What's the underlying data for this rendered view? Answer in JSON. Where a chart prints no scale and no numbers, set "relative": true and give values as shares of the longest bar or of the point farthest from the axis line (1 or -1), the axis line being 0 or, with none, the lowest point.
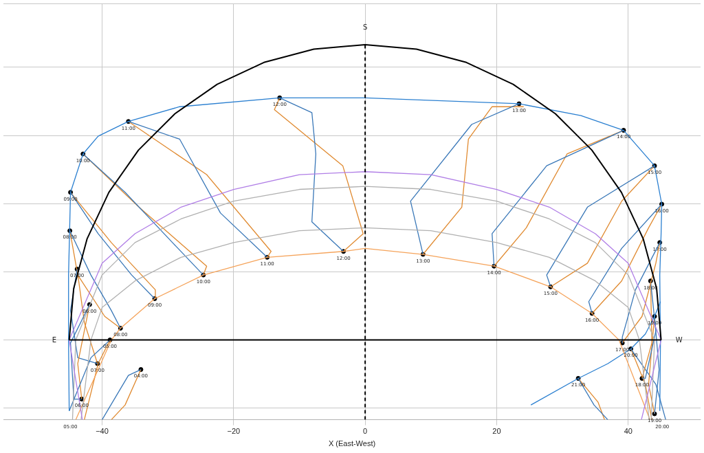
{
  "chart_data": {
    "type": "line",
    "relative": true,
    "xlabel": "X (East-West)",
    "xlim": [
      -55,
      51
    ],
    "xticks": [
      -40,
      -20,
      0,
      20,
      40
    ],
    "grid": true,
    "legend": false,
    "tick_labels": "x",
    "marker": "none",
    "series": [
      {
        "color": "#000000",
        "x": [
          -45,
          -44.32,
          -42.29,
          -38.97,
          -34.47,
          -28.93,
          -22.5,
          -15.39,
          -7.81,
          0,
          7.81,
          15.39,
          22.5,
          28.93,
          34.47,
          38.97,
          42.29,
          44.32,
          45
        ],
        "values": [
          0,
          0.174,
          0.342,
          0.5,
          0.643,
          0.766,
          0.866,
          0.94,
          0.985,
          1,
          0.985,
          0.94,
          0.866,
          0.766,
          0.643,
          0.5,
          0.342,
          0.174,
          0
        ]
      },
      {
        "color": "#000000",
        "x": [
          -45,
          45
        ],
        "values": [
          0,
          0
        ]
      },
      {
        "color": "#000000",
        "line_style": "dashed",
        "x": [
          0,
          0
        ],
        "values": [
          -0.27,
          1
        ]
      },
      {
        "color": "#b07ee6",
        "x": [
          -43,
          -45,
          -40,
          -35,
          -28,
          -20,
          -10,
          0,
          10,
          20,
          28,
          35,
          40,
          45,
          42
        ],
        "values": [
          -0.27,
          0,
          0.26,
          0.36,
          0.45,
          0.51,
          0.56,
          0.57,
          0.56,
          0.51,
          0.45,
          0.36,
          0.26,
          0,
          -0.27
        ]
      },
      {
        "color": "#b0b0b0",
        "x": [
          -44.5,
          -44,
          -40,
          -35,
          -28,
          -20,
          -10,
          0,
          10,
          20,
          28,
          35,
          40,
          44,
          43.5
        ],
        "values": [
          -0.27,
          0,
          0.22,
          0.33,
          0.41,
          0.47,
          0.51,
          0.52,
          0.51,
          0.47,
          0.41,
          0.33,
          0.22,
          0,
          -0.27
        ]
      },
      {
        "color": "#b0b0b0",
        "x": [
          -43.2,
          -41.7,
          -40,
          -35,
          -28,
          -20,
          -10,
          0,
          10,
          20,
          28,
          35,
          40,
          41.7,
          43.2
        ],
        "values": [
          -0.27,
          0,
          0.11,
          0.2,
          0.28,
          0.33,
          0.37,
          0.38,
          0.37,
          0.33,
          0.28,
          0.2,
          0.11,
          0,
          -0.27
        ]
      },
      {
        "color": "#f5a35a",
        "x": [
          -44,
          -38.6,
          -37.2,
          -32,
          -24.6,
          -14.9,
          -3.3,
          0,
          8.8,
          19.6,
          28.2,
          34.5,
          38.6,
          43.3
        ],
        "values": [
          -0.27,
          0,
          0.04,
          0.14,
          0.22,
          0.28,
          0.3,
          0.31,
          0.29,
          0.25,
          0.18,
          0.09,
          0,
          -0.27
        ]
      },
      {
        "color": "#2a7fd0",
        "x": [
          -45.0,
          -45.1,
          -45.1,
          -44.8,
          -42.9,
          -40.6,
          -36.0,
          -28.2,
          -13.0,
          0,
          23.4,
          32.8,
          39.3,
          44.0,
          45.1,
          45.0,
          44.8,
          44.9,
          44.8
        ],
        "values": [
          -0.24,
          -0.01,
          0.22,
          0.5,
          0.63,
          0.69,
          0.74,
          0.79,
          0.82,
          0.82,
          0.8,
          0.76,
          0.71,
          0.59,
          0.46,
          0.36,
          0.22,
          -0.01,
          -0.24
        ]
      },
      {
        "color": "#2a7fd0",
        "x": [
          25.2,
          32.4,
          36.9,
          40.4,
          42.6,
          44.0,
          44.9
        ],
        "values": [
          -0.22,
          -0.13,
          -0.08,
          -0.03,
          0.02,
          0.08,
          0.13
        ]
      },
      {
        "color": "#3a78b8",
        "x": [
          -34.1,
          -36.0,
          -40.0
        ],
        "values": [
          -0.1,
          -0.12,
          -0.27
        ]
      },
      {
        "color": "#e08a30",
        "x": [
          -34.1,
          -36.5,
          -38.6
        ],
        "values": [
          -0.1,
          -0.22,
          -0.27
        ]
      },
      {
        "color": "#3a78b8",
        "x": [
          -38.8,
          -41.7,
          -45.0
        ],
        "values": [
          0,
          -0.06,
          -0.24
        ]
      },
      {
        "color": "#e08a30",
        "x": [
          -38.8,
          -40.6,
          -42.7
        ],
        "values": [
          0,
          -0.08,
          -0.27
        ]
      },
      {
        "color": "#3a78b8",
        "x": [
          -41.9,
          -44.8,
          -44.3,
          -43.1
        ],
        "values": [
          0.12,
          -0.01,
          -0.2,
          -0.2
        ]
      },
      {
        "color": "#e08a30",
        "x": [
          -43.1,
          -43.7,
          -41.9
        ],
        "values": [
          -0.2,
          -0.08,
          0.12
        ]
      },
      {
        "color": "#3a78b8",
        "x": [
          -43.8,
          -44.8,
          -43.7,
          -40.7
        ],
        "values": [
          0.24,
          0.1,
          -0.06,
          -0.08
        ]
      },
      {
        "color": "#e08a30",
        "x": [
          -40.7,
          -42.7,
          -43.8
        ],
        "values": [
          -0.08,
          0.06,
          0.24
        ]
      },
      {
        "color": "#3a78b8",
        "x": [
          -44.9,
          -41.7,
          -38.6,
          -37.2
        ],
        "values": [
          0.37,
          0.22,
          0.1,
          0.04
        ]
      },
      {
        "color": "#e08a30",
        "x": [
          -37.2,
          -39.6,
          -43.7,
          -44.9
        ],
        "values": [
          0.04,
          0.08,
          0.22,
          0.37
        ]
      },
      {
        "color": "#3a78b8",
        "x": [
          -44.8,
          -40.6,
          -35.5,
          -32.0
        ],
        "values": [
          0.5,
          0.36,
          0.22,
          0.14
        ]
      },
      {
        "color": "#e08a30",
        "x": [
          -32.0,
          -31.9,
          -38.6,
          -44.8
        ],
        "values": [
          0.14,
          0.17,
          0.33,
          0.5
        ]
      },
      {
        "color": "#3a78b8",
        "x": [
          -42.9,
          -36.5,
          -29.3,
          -24.6
        ],
        "values": [
          0.63,
          0.5,
          0.33,
          0.22
        ]
      },
      {
        "color": "#e08a30",
        "x": [
          -24.6,
          -24.1,
          -34.4,
          -42.9
        ],
        "values": [
          0.22,
          0.25,
          0.45,
          0.63
        ]
      },
      {
        "color": "#3a78b8",
        "x": [
          -36.0,
          -28.2,
          -22.0,
          -14.9
        ],
        "values": [
          0.74,
          0.68,
          0.43,
          0.28
        ]
      },
      {
        "color": "#e08a30",
        "x": [
          -14.9,
          -14.3,
          -24.1,
          -36.0
        ],
        "values": [
          0.28,
          0.3,
          0.56,
          0.74
        ]
      },
      {
        "color": "#3a78b8",
        "x": [
          -13.0,
          -8.1,
          -7.5,
          -8.1,
          -3.3
        ],
        "values": [
          0.82,
          0.77,
          0.63,
          0.4,
          0.3
        ]
      },
      {
        "color": "#e08a30",
        "x": [
          -3.3,
          -0.3,
          -3.4,
          -13.8,
          -13.0
        ],
        "values": [
          0.3,
          0.36,
          0.59,
          0.78,
          0.82
        ]
      },
      {
        "color": "#3a78b8",
        "x": [
          23.4,
          16.2,
          6.9,
          8.8
        ],
        "values": [
          0.8,
          0.73,
          0.47,
          0.29
        ]
      },
      {
        "color": "#e08a30",
        "x": [
          8.8,
          14.7,
          15.7,
          19.3,
          24.1
        ],
        "values": [
          0.29,
          0.45,
          0.68,
          0.79,
          0.79
        ]
      },
      {
        "color": "#3a78b8",
        "x": [
          39.3,
          27.6,
          19.3,
          19.6
        ],
        "values": [
          0.71,
          0.59,
          0.36,
          0.25
        ]
      },
      {
        "color": "#e08a30",
        "x": [
          19.6,
          24.5,
          30.7,
          39.3
        ],
        "values": [
          0.25,
          0.38,
          0.63,
          0.71
        ]
      },
      {
        "color": "#3a78b8",
        "x": [
          44.0,
          33.8,
          27.6,
          28.2
        ],
        "values": [
          0.59,
          0.45,
          0.22,
          0.18
        ]
      },
      {
        "color": "#e08a30",
        "x": [
          28.2,
          33.8,
          39.0,
          44.0
        ],
        "values": [
          0.18,
          0.26,
          0.47,
          0.59
        ]
      },
      {
        "color": "#3a78b8",
        "x": [
          45.1,
          39.0,
          34.0,
          34.5
        ],
        "values": [
          0.46,
          0.31,
          0.13,
          0.09
        ]
      },
      {
        "color": "#e08a30",
        "x": [
          34.5,
          39.0,
          43.1,
          45.1
        ],
        "values": [
          0.09,
          0.2,
          0.38,
          0.46
        ]
      },
      {
        "color": "#3a78b8",
        "x": [
          44.8,
          41.1,
          39.1,
          39.1
        ],
        "values": [
          0.33,
          0.17,
          0.01,
          -0.01
        ]
      },
      {
        "color": "#e08a30",
        "x": [
          39.1,
          42.1,
          44.2,
          44.8
        ],
        "values": [
          -0.01,
          0.08,
          0.26,
          0.33
        ]
      },
      {
        "color": "#3a78b8",
        "x": [
          43.4,
          44.2,
          42.6,
          42.1
        ],
        "values": [
          0.2,
          0.03,
          -0.13,
          -0.13
        ]
      },
      {
        "color": "#e08a30",
        "x": [
          42.1,
          43.6,
          43.4
        ],
        "values": [
          -0.13,
          -0.01,
          0.2
        ]
      },
      {
        "color": "#3a78b8",
        "x": [
          44.0,
          44.7,
          44.0
        ],
        "values": [
          0.08,
          -0.1,
          -0.25
        ]
      },
      {
        "color": "#e08a30",
        "x": [
          44.0,
          43.1,
          44.0
        ],
        "values": [
          -0.25,
          -0.15,
          0.08
        ]
      },
      {
        "color": "#3a78b8",
        "x": [
          40.4,
          44.2,
          45.7
        ],
        "values": [
          -0.03,
          -0.15,
          -0.27
        ]
      },
      {
        "color": "#e08a30",
        "x": [
          40.4,
          42.6,
          43.6
        ],
        "values": [
          -0.03,
          -0.15,
          -0.27
        ]
      },
      {
        "color": "#3a78b8",
        "x": [
          32.4,
          34.8,
          36.9
        ],
        "values": [
          -0.13,
          -0.22,
          -0.27
        ]
      },
      {
        "color": "#e08a30",
        "x": [
          32.4,
          35.4,
          36.4
        ],
        "values": [
          -0.13,
          -0.21,
          -0.27
        ]
      },
      {
        "type": "scatter",
        "marker": "circle",
        "color": "#000000",
        "x": [
          -34.1,
          -38.8,
          -41.9,
          -43.8,
          -44.9,
          -44.8,
          -42.9,
          -36.0,
          -13.0,
          23.4,
          39.3,
          44.0,
          45.1,
          44.8,
          43.4,
          44.0,
          40.4,
          32.4
        ],
        "values": [
          -0.1,
          0,
          0.12,
          0.24,
          0.37,
          0.5,
          0.63,
          0.74,
          0.82,
          0.8,
          0.71,
          0.59,
          0.46,
          0.33,
          0.2,
          0.08,
          -0.03,
          -0.13
        ]
      },
      {
        "type": "scatter",
        "marker": "circle",
        "color": "#000000",
        "x": [
          -43.1,
          -40.7,
          -37.2,
          -32.0,
          -24.6,
          -14.9,
          -3.3,
          8.8,
          19.6,
          28.2,
          34.5,
          39.1,
          42.1,
          44.0
        ],
        "values": [
          -0.2,
          -0.08,
          0.04,
          0.14,
          0.22,
          0.28,
          0.3,
          0.29,
          0.25,
          0.18,
          0.09,
          -0.01,
          -0.13,
          -0.25
        ]
      }
    ],
    "annotations": [
      {
        "text": "04:00",
        "x": -34.1,
        "y": -0.1
      },
      {
        "text": "05:00",
        "x": -38.8,
        "y": 0
      },
      {
        "text": "06:00",
        "x": -41.9,
        "y": 0.12
      },
      {
        "text": "07:00",
        "x": -43.8,
        "y": 0.24
      },
      {
        "text": "08:00",
        "x": -44.9,
        "y": 0.37
      },
      {
        "text": "09:00",
        "x": -44.8,
        "y": 0.5
      },
      {
        "text": "10:00",
        "x": -42.9,
        "y": 0.63
      },
      {
        "text": "11:00",
        "x": -36.0,
        "y": 0.74
      },
      {
        "text": "12:00",
        "x": -13.0,
        "y": 0.82
      },
      {
        "text": "13:00",
        "x": 23.4,
        "y": 0.8
      },
      {
        "text": "14:00",
        "x": 39.3,
        "y": 0.71
      },
      {
        "text": "15:00",
        "x": 44.0,
        "y": 0.59
      },
      {
        "text": "16:00",
        "x": 45.1,
        "y": 0.46
      },
      {
        "text": "17:00",
        "x": 44.8,
        "y": 0.33
      },
      {
        "text": "18:00",
        "x": 43.4,
        "y": 0.2
      },
      {
        "text": "19:00",
        "x": 44.0,
        "y": 0.08
      },
      {
        "text": "20:00",
        "x": 40.4,
        "y": -0.03
      },
      {
        "text": "21:00",
        "x": 32.4,
        "y": -0.13
      },
      {
        "text": "06:00",
        "x": -43.1,
        "y": -0.2
      },
      {
        "text": "07:00",
        "x": -40.7,
        "y": -0.08
      },
      {
        "text": "08:00",
        "x": -37.2,
        "y": 0.04
      },
      {
        "text": "09:00",
        "x": -32.0,
        "y": 0.14
      },
      {
        "text": "10:00",
        "x": -24.6,
        "y": 0.22
      },
      {
        "text": "11:00",
        "x": -14.9,
        "y": 0.28
      },
      {
        "text": "12:00",
        "x": -3.3,
        "y": 0.3
      },
      {
        "text": "13:00",
        "x": 8.8,
        "y": 0.29
      },
      {
        "text": "14:00",
        "x": 19.6,
        "y": 0.25
      },
      {
        "text": "15:00",
        "x": 28.2,
        "y": 0.18
      },
      {
        "text": "16:00",
        "x": 34.5,
        "y": 0.09
      },
      {
        "text": "17:00",
        "x": 39.1,
        "y": -0.01
      },
      {
        "text": "18:00",
        "x": 42.1,
        "y": -0.13
      },
      {
        "text": "19:00",
        "x": 44.0,
        "y": -0.25
      },
      "05:00",
      "20:00",
      "E",
      "W",
      "S"
    ]
  }
}
